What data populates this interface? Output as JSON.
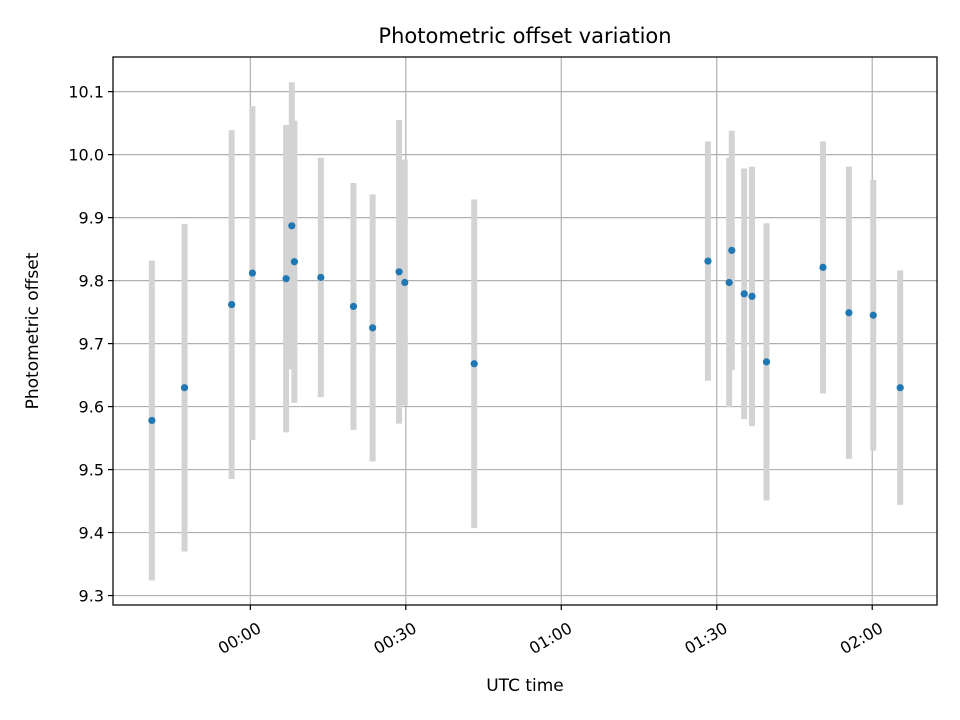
{
  "chart_data": {
    "type": "scatter",
    "title": "Photometric offset variation",
    "xlabel": "UTC time",
    "ylabel": "Photometric offset",
    "x_ticks": [
      "00:00",
      "00:30",
      "01:00",
      "01:30",
      "02:00"
    ],
    "x_tick_minutes": [
      0,
      30,
      60,
      90,
      120
    ],
    "xlim_minutes": [
      -26.5,
      132.5
    ],
    "x_axis": "UTC time, minutes after 00:00",
    "y_ticks": [
      "9.3",
      "9.4",
      "9.5",
      "9.6",
      "9.7",
      "9.8",
      "9.9",
      "10.0",
      "10.1"
    ],
    "ylim": [
      9.285,
      10.155
    ],
    "grid": true,
    "colors": {
      "marker": "#1f77b4",
      "errorbar": "#d3d3d3",
      "grid": "#b0b0b0"
    },
    "points": [
      {
        "x_min": -19.0,
        "y": 9.578,
        "err": 0.254
      },
      {
        "x_min": -12.7,
        "y": 9.63,
        "err": 0.26
      },
      {
        "x_min": -3.6,
        "y": 9.762,
        "err": 0.277
      },
      {
        "x_min": 0.4,
        "y": 9.812,
        "err": 0.265
      },
      {
        "x_min": 6.9,
        "y": 9.803,
        "err": 0.244
      },
      {
        "x_min": 8.0,
        "y": 9.887,
        "err": 0.228
      },
      {
        "x_min": 8.5,
        "y": 9.83,
        "err": 0.224
      },
      {
        "x_min": 13.6,
        "y": 9.805,
        "err": 0.19
      },
      {
        "x_min": 19.9,
        "y": 9.759,
        "err": 0.196
      },
      {
        "x_min": 23.6,
        "y": 9.725,
        "err": 0.212
      },
      {
        "x_min": 28.7,
        "y": 9.814,
        "err": 0.241
      },
      {
        "x_min": 29.8,
        "y": 9.797,
        "err": 0.195
      },
      {
        "x_min": 43.2,
        "y": 9.668,
        "err": 0.261
      },
      {
        "x_min": 88.3,
        "y": 9.831,
        "err": 0.19
      },
      {
        "x_min": 92.4,
        "y": 9.797,
        "err": 0.198
      },
      {
        "x_min": 92.9,
        "y": 9.848,
        "err": 0.19
      },
      {
        "x_min": 95.3,
        "y": 9.779,
        "err": 0.199
      },
      {
        "x_min": 96.8,
        "y": 9.775,
        "err": 0.206
      },
      {
        "x_min": 99.6,
        "y": 9.671,
        "err": 0.22
      },
      {
        "x_min": 110.5,
        "y": 9.821,
        "err": 0.2
      },
      {
        "x_min": 115.5,
        "y": 9.749,
        "err": 0.232
      },
      {
        "x_min": 120.2,
        "y": 9.745,
        "err": 0.215
      },
      {
        "x_min": 125.4,
        "y": 9.63,
        "err": 0.186
      }
    ]
  }
}
